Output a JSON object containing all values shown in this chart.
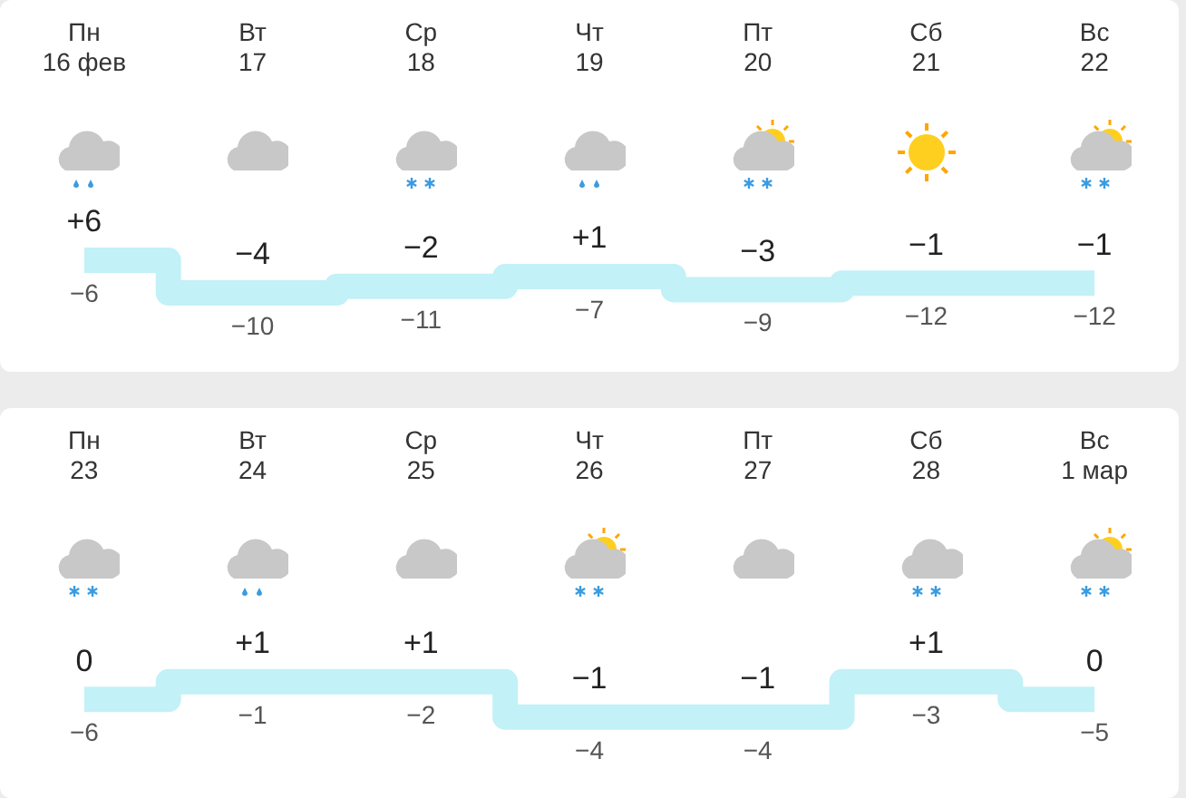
{
  "chart_data": [
    {
      "type": "step",
      "categories": [
        "Пн\n16 фев",
        "Вт\n17",
        "Ср\n18",
        "Чт\n19",
        "Пт\n20",
        "Сб\n21",
        "Вс\n22"
      ],
      "marker": "none",
      "tick_labels": "x",
      "grid": false,
      "legend": false,
      "series": [
        {
          "values": [
            6,
            -4,
            -2,
            1,
            -3,
            -1,
            -1
          ],
          "value_labels": [
            "+6",
            "−4",
            "−2",
            "+1",
            "−3",
            "−1",
            "−1"
          ],
          "color": "#c2f1f7"
        }
      ],
      "annotations": [
        "−6",
        "−10",
        "−11",
        "−7",
        "−9",
        "−12",
        "−12"
      ]
    },
    {
      "type": "step",
      "categories": [
        "Пн\n23",
        "Вт\n24",
        "Ср\n25",
        "Чт\n26",
        "Пт\n27",
        "Сб\n28",
        "Вс\n1 мар"
      ],
      "marker": "none",
      "tick_labels": "x",
      "grid": false,
      "legend": false,
      "series": [
        {
          "values": [
            0,
            1,
            1,
            -1,
            -1,
            1,
            0
          ],
          "value_labels": [
            "0",
            "+1",
            "+1",
            "−1",
            "−1",
            "+1",
            "0"
          ],
          "color": "#c2f1f7"
        }
      ],
      "annotations": [
        "−6",
        "−1",
        "−2",
        "−4",
        "−4",
        "−3",
        "−5"
      ]
    }
  ]
}
